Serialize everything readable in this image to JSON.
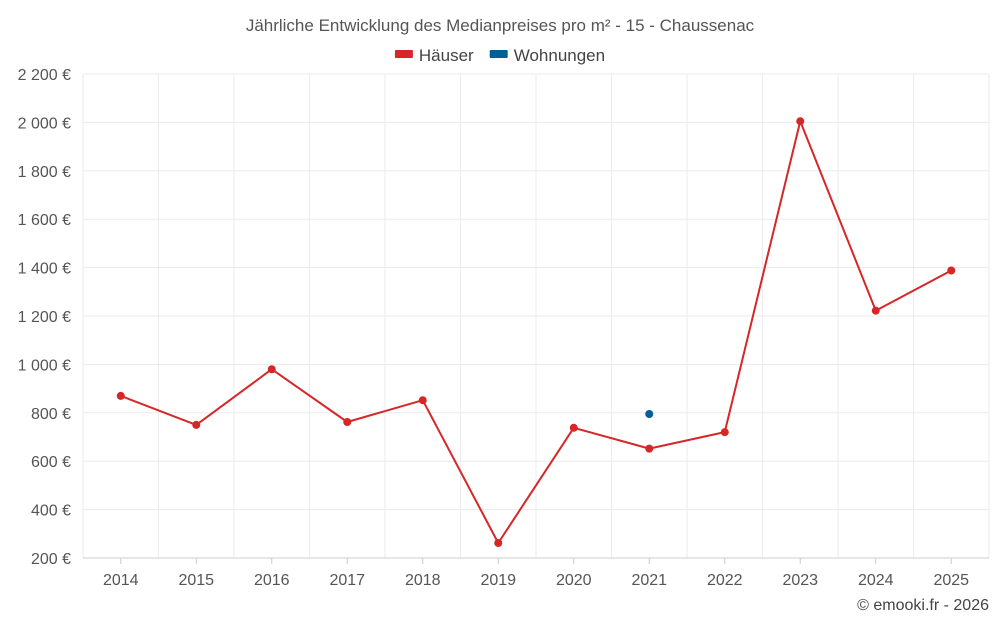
{
  "chart_data": {
    "type": "line",
    "title": "Jährliche Entwicklung des Medianpreises pro m² - 15 - Chaussenac",
    "categories": [
      "2014",
      "2015",
      "2016",
      "2017",
      "2018",
      "2019",
      "2020",
      "2021",
      "2022",
      "2023",
      "2024",
      "2025"
    ],
    "series": [
      {
        "name": "Häuser",
        "color": "#d62728",
        "values": [
          870,
          750,
          980,
          762,
          852,
          262,
          738,
          652,
          720,
          2005,
          1222,
          1388
        ]
      },
      {
        "name": "Wohnungen",
        "color": "#005f99",
        "values": [
          null,
          null,
          null,
          null,
          null,
          null,
          null,
          795,
          null,
          null,
          null,
          null
        ]
      }
    ],
    "ylim": [
      200,
      2200
    ],
    "yticks": [
      200,
      400,
      600,
      800,
      1000,
      1200,
      1400,
      1600,
      1800,
      2000,
      2200
    ],
    "ytick_labels": [
      "200 €",
      "400 €",
      "600 €",
      "800 €",
      "1 000 €",
      "1 200 €",
      "1 400 €",
      "1 600 €",
      "1 800 €",
      "2 000 €",
      "2 200 €"
    ],
    "xlabel": "",
    "ylabel": "",
    "grid": true,
    "legend_position": "top-center"
  },
  "credit": "© emooki.fr - 2026"
}
